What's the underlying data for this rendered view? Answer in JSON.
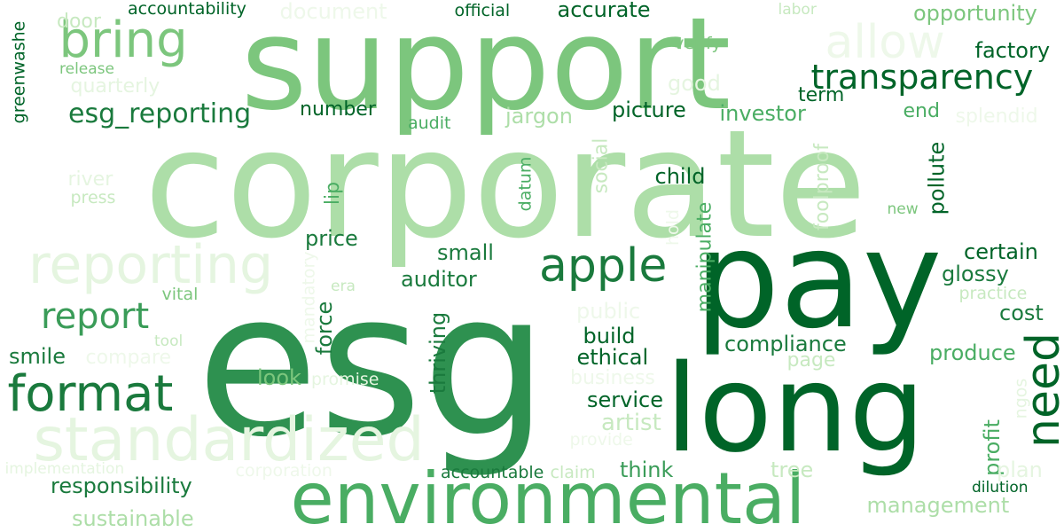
{
  "palette": {
    "darkest": "#006428",
    "dark": "#2e9150",
    "mid": "#4aad63",
    "light": "#7cc67d",
    "lighter": "#addea8",
    "lightest": "#d7efd1",
    "faint": "#e5f5e0"
  },
  "words": [
    {
      "text": "corporate",
      "color": "#addea8"
    },
    {
      "text": "esg",
      "color": "#2e9150"
    },
    {
      "text": "support",
      "color": "#7cc67d"
    },
    {
      "text": "pay",
      "color": "#006428"
    },
    {
      "text": "long",
      "color": "#006428"
    },
    {
      "text": "environmental",
      "color": "#4aad63"
    },
    {
      "text": "standardized",
      "color": "#e5f5e0"
    },
    {
      "text": "reporting",
      "color": "#e5f5e0"
    },
    {
      "text": "format",
      "color": "#1a7a3d"
    },
    {
      "text": "bring",
      "color": "#7cc67d"
    },
    {
      "text": "allow",
      "color": "#eef8ea"
    },
    {
      "text": "transparency",
      "color": "#006428"
    },
    {
      "text": "apple",
      "color": "#1a7a3d"
    },
    {
      "text": "report",
      "color": "#3a9c58"
    },
    {
      "text": "need",
      "color": "#006428"
    },
    {
      "text": "esg_reporting",
      "color": "#1a7a3d"
    },
    {
      "text": "responsibility",
      "color": "#1a7a3d"
    },
    {
      "text": "sustainable",
      "color": "#addea8"
    },
    {
      "text": "management",
      "color": "#addea8"
    },
    {
      "text": "compliance",
      "color": "#1a7a3d"
    },
    {
      "text": "service",
      "color": "#006428"
    },
    {
      "text": "artist",
      "color": "#c7e9c0"
    },
    {
      "text": "business",
      "color": "#eef8ea"
    },
    {
      "text": "accurate",
      "color": "#006428"
    },
    {
      "text": "opportunity",
      "color": "#7cc67d"
    },
    {
      "text": "factory",
      "color": "#006428"
    },
    {
      "text": "document",
      "color": "#eef8ea"
    },
    {
      "text": "accountability",
      "color": "#006428"
    },
    {
      "text": "official",
      "color": "#006428"
    },
    {
      "text": "door",
      "color": "#c7e9c0"
    },
    {
      "text": "labor",
      "color": "#c7e9c0"
    },
    {
      "text": "verify",
      "color": "#7cc67d"
    },
    {
      "text": "good",
      "color": "#e5f5e0"
    },
    {
      "text": "term",
      "color": "#006428"
    },
    {
      "text": "release",
      "color": "#7cc67d"
    },
    {
      "text": "quarterly",
      "color": "#e5f5e0"
    },
    {
      "text": "number",
      "color": "#006428"
    },
    {
      "text": "jargon",
      "color": "#addea8"
    },
    {
      "text": "picture",
      "color": "#006428"
    },
    {
      "text": "investor",
      "color": "#4aad63"
    },
    {
      "text": "end",
      "color": "#4aad63"
    },
    {
      "text": "splendid",
      "color": "#eef8ea"
    },
    {
      "text": "audit",
      "color": "#4aad63"
    },
    {
      "text": "greenwashe",
      "color": "#006428"
    },
    {
      "text": "river",
      "color": "#e5f5e0"
    },
    {
      "text": "press",
      "color": "#c7e9c0"
    },
    {
      "text": "datum",
      "color": "#4aad63"
    },
    {
      "text": "social",
      "color": "#c7e9c0"
    },
    {
      "text": "child",
      "color": "#006428"
    },
    {
      "text": "lip",
      "color": "#4aad63"
    },
    {
      "text": "foolproof",
      "color": "#c7e9c0"
    },
    {
      "text": "pollute",
      "color": "#006428"
    },
    {
      "text": "new",
      "color": "#7cc67d"
    },
    {
      "text": "hold",
      "color": "#eef8ea"
    },
    {
      "text": "manipulate",
      "color": "#4aad63"
    },
    {
      "text": "price",
      "color": "#1a7a3d"
    },
    {
      "text": "small",
      "color": "#1a7a3d"
    },
    {
      "text": "certain",
      "color": "#006428"
    },
    {
      "text": "glossy",
      "color": "#1a7a3d"
    },
    {
      "text": "auditor",
      "color": "#1a7a3d"
    },
    {
      "text": "mandatory",
      "color": "#eef8ea"
    },
    {
      "text": "era",
      "color": "#c7e9c0"
    },
    {
      "text": "practice",
      "color": "#c7e9c0"
    },
    {
      "text": "vital",
      "color": "#7cc67d"
    },
    {
      "text": "public",
      "color": "#eef8ea"
    },
    {
      "text": "cost",
      "color": "#1a7a3d"
    },
    {
      "text": "tool",
      "color": "#c7e9c0"
    },
    {
      "text": "force",
      "color": "#1a7a3d"
    },
    {
      "text": "thriving",
      "color": "#1a7a3d"
    },
    {
      "text": "build",
      "color": "#006428"
    },
    {
      "text": "smile",
      "color": "#1a7a3d"
    },
    {
      "text": "compare",
      "color": "#eef8ea"
    },
    {
      "text": "ethical",
      "color": "#006428"
    },
    {
      "text": "produce",
      "color": "#4aad63"
    },
    {
      "text": "page",
      "color": "#c7e9c0"
    },
    {
      "text": "look",
      "color": "#7cc67d"
    },
    {
      "text": "promise",
      "color": "#e5f5e0"
    },
    {
      "text": "ngos",
      "color": "#e5f5e0"
    },
    {
      "text": "profit",
      "color": "#4aad63"
    },
    {
      "text": "provide",
      "color": "#eef8ea"
    },
    {
      "text": "plan",
      "color": "#e5f5e0"
    },
    {
      "text": "implementation",
      "color": "#e5f5e0"
    },
    {
      "text": "corporation",
      "color": "#eef8ea"
    },
    {
      "text": "accountable",
      "color": "#1a7a3d"
    },
    {
      "text": "claim",
      "color": "#c7e9c0"
    },
    {
      "text": "think",
      "color": "#3a9c58"
    },
    {
      "text": "tree",
      "color": "#c7e9c0"
    },
    {
      "text": "dilution",
      "color": "#006428"
    }
  ]
}
